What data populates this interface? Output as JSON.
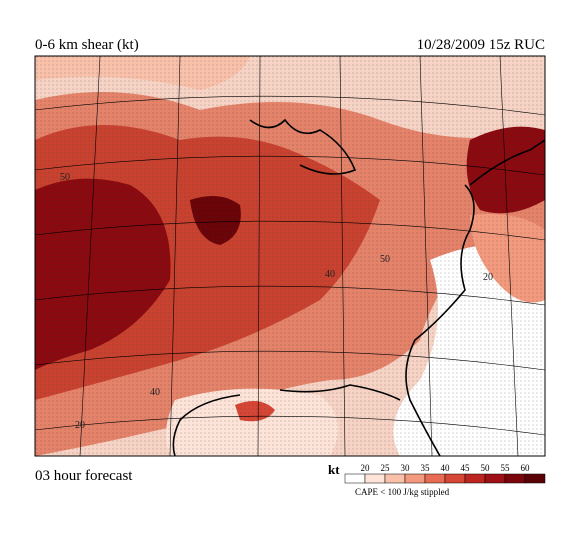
{
  "header": {
    "title": "0-6 km shear (kt)",
    "valid": "10/28/2009  15z  RUC"
  },
  "footer": {
    "forecast": "03 hour forecast",
    "note": "CAPE < 100 J/kg stippled"
  },
  "map": {
    "contour_labels": [
      "20",
      "40",
      "50",
      "40",
      "50",
      "20"
    ]
  },
  "legend": {
    "unit": "kt",
    "levels": [
      20,
      25,
      30,
      35,
      40,
      45,
      50,
      55,
      60
    ],
    "colors": [
      "#ffffff",
      "#fde3d8",
      "#f9c0aa",
      "#f39a7e",
      "#e86c54",
      "#d64635",
      "#bd2620",
      "#9e1016",
      "#7a060c",
      "#5a0206"
    ]
  }
}
